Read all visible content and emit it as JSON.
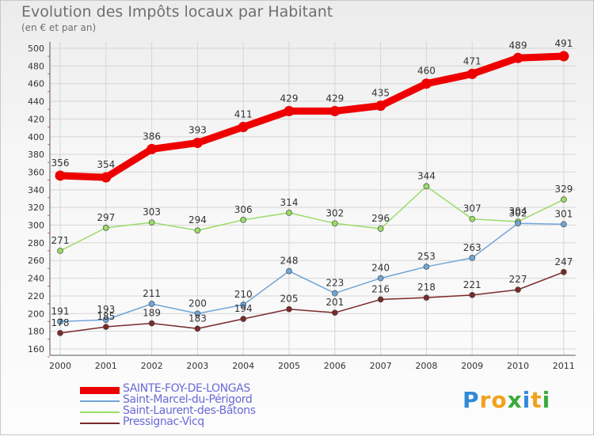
{
  "chart_data": {
    "type": "line",
    "title": "Evolution des Impôts locaux par Habitant",
    "subtitle": "(en € et par an)",
    "x": [
      2000,
      2001,
      2002,
      2003,
      2004,
      2005,
      2006,
      2007,
      2008,
      2009,
      2010,
      2011
    ],
    "ylim": [
      160,
      500
    ],
    "yticks": [
      160,
      180,
      200,
      220,
      240,
      260,
      280,
      300,
      320,
      340,
      360,
      380,
      400,
      420,
      440,
      460,
      480,
      500
    ],
    "series": [
      {
        "name": "SAINTE-FOY-DE-LONGAS",
        "color": "#ee0000",
        "values": [
          356,
          354,
          386,
          393,
          411,
          429,
          429,
          435,
          460,
          471,
          489,
          491
        ]
      },
      {
        "name": "Saint-Marcel-du-Périgord",
        "color": "#6fa6d8",
        "values": [
          191,
          193,
          211,
          200,
          210,
          248,
          223,
          240,
          253,
          263,
          302,
          301
        ]
      },
      {
        "name": "Saint-Laurent-des-Bâtons",
        "color": "#99dd66",
        "values": [
          271,
          297,
          303,
          294,
          306,
          314,
          302,
          296,
          344,
          307,
          304,
          329
        ]
      },
      {
        "name": "Pressignac-Vicq",
        "color": "#7a2a2a",
        "values": [
          178,
          185,
          189,
          183,
          194,
          205,
          201,
          216,
          218,
          221,
          227,
          247
        ]
      }
    ]
  },
  "logo": {
    "letters": [
      "P",
      "r",
      "o",
      "x",
      "i",
      "t",
      "i"
    ],
    "colors": [
      "#2f8ad8",
      "#f2a11c",
      "#f2a11c",
      "#3aaa3a",
      "#2f8ad8",
      "#f2a11c",
      "#3aaa3a"
    ]
  }
}
